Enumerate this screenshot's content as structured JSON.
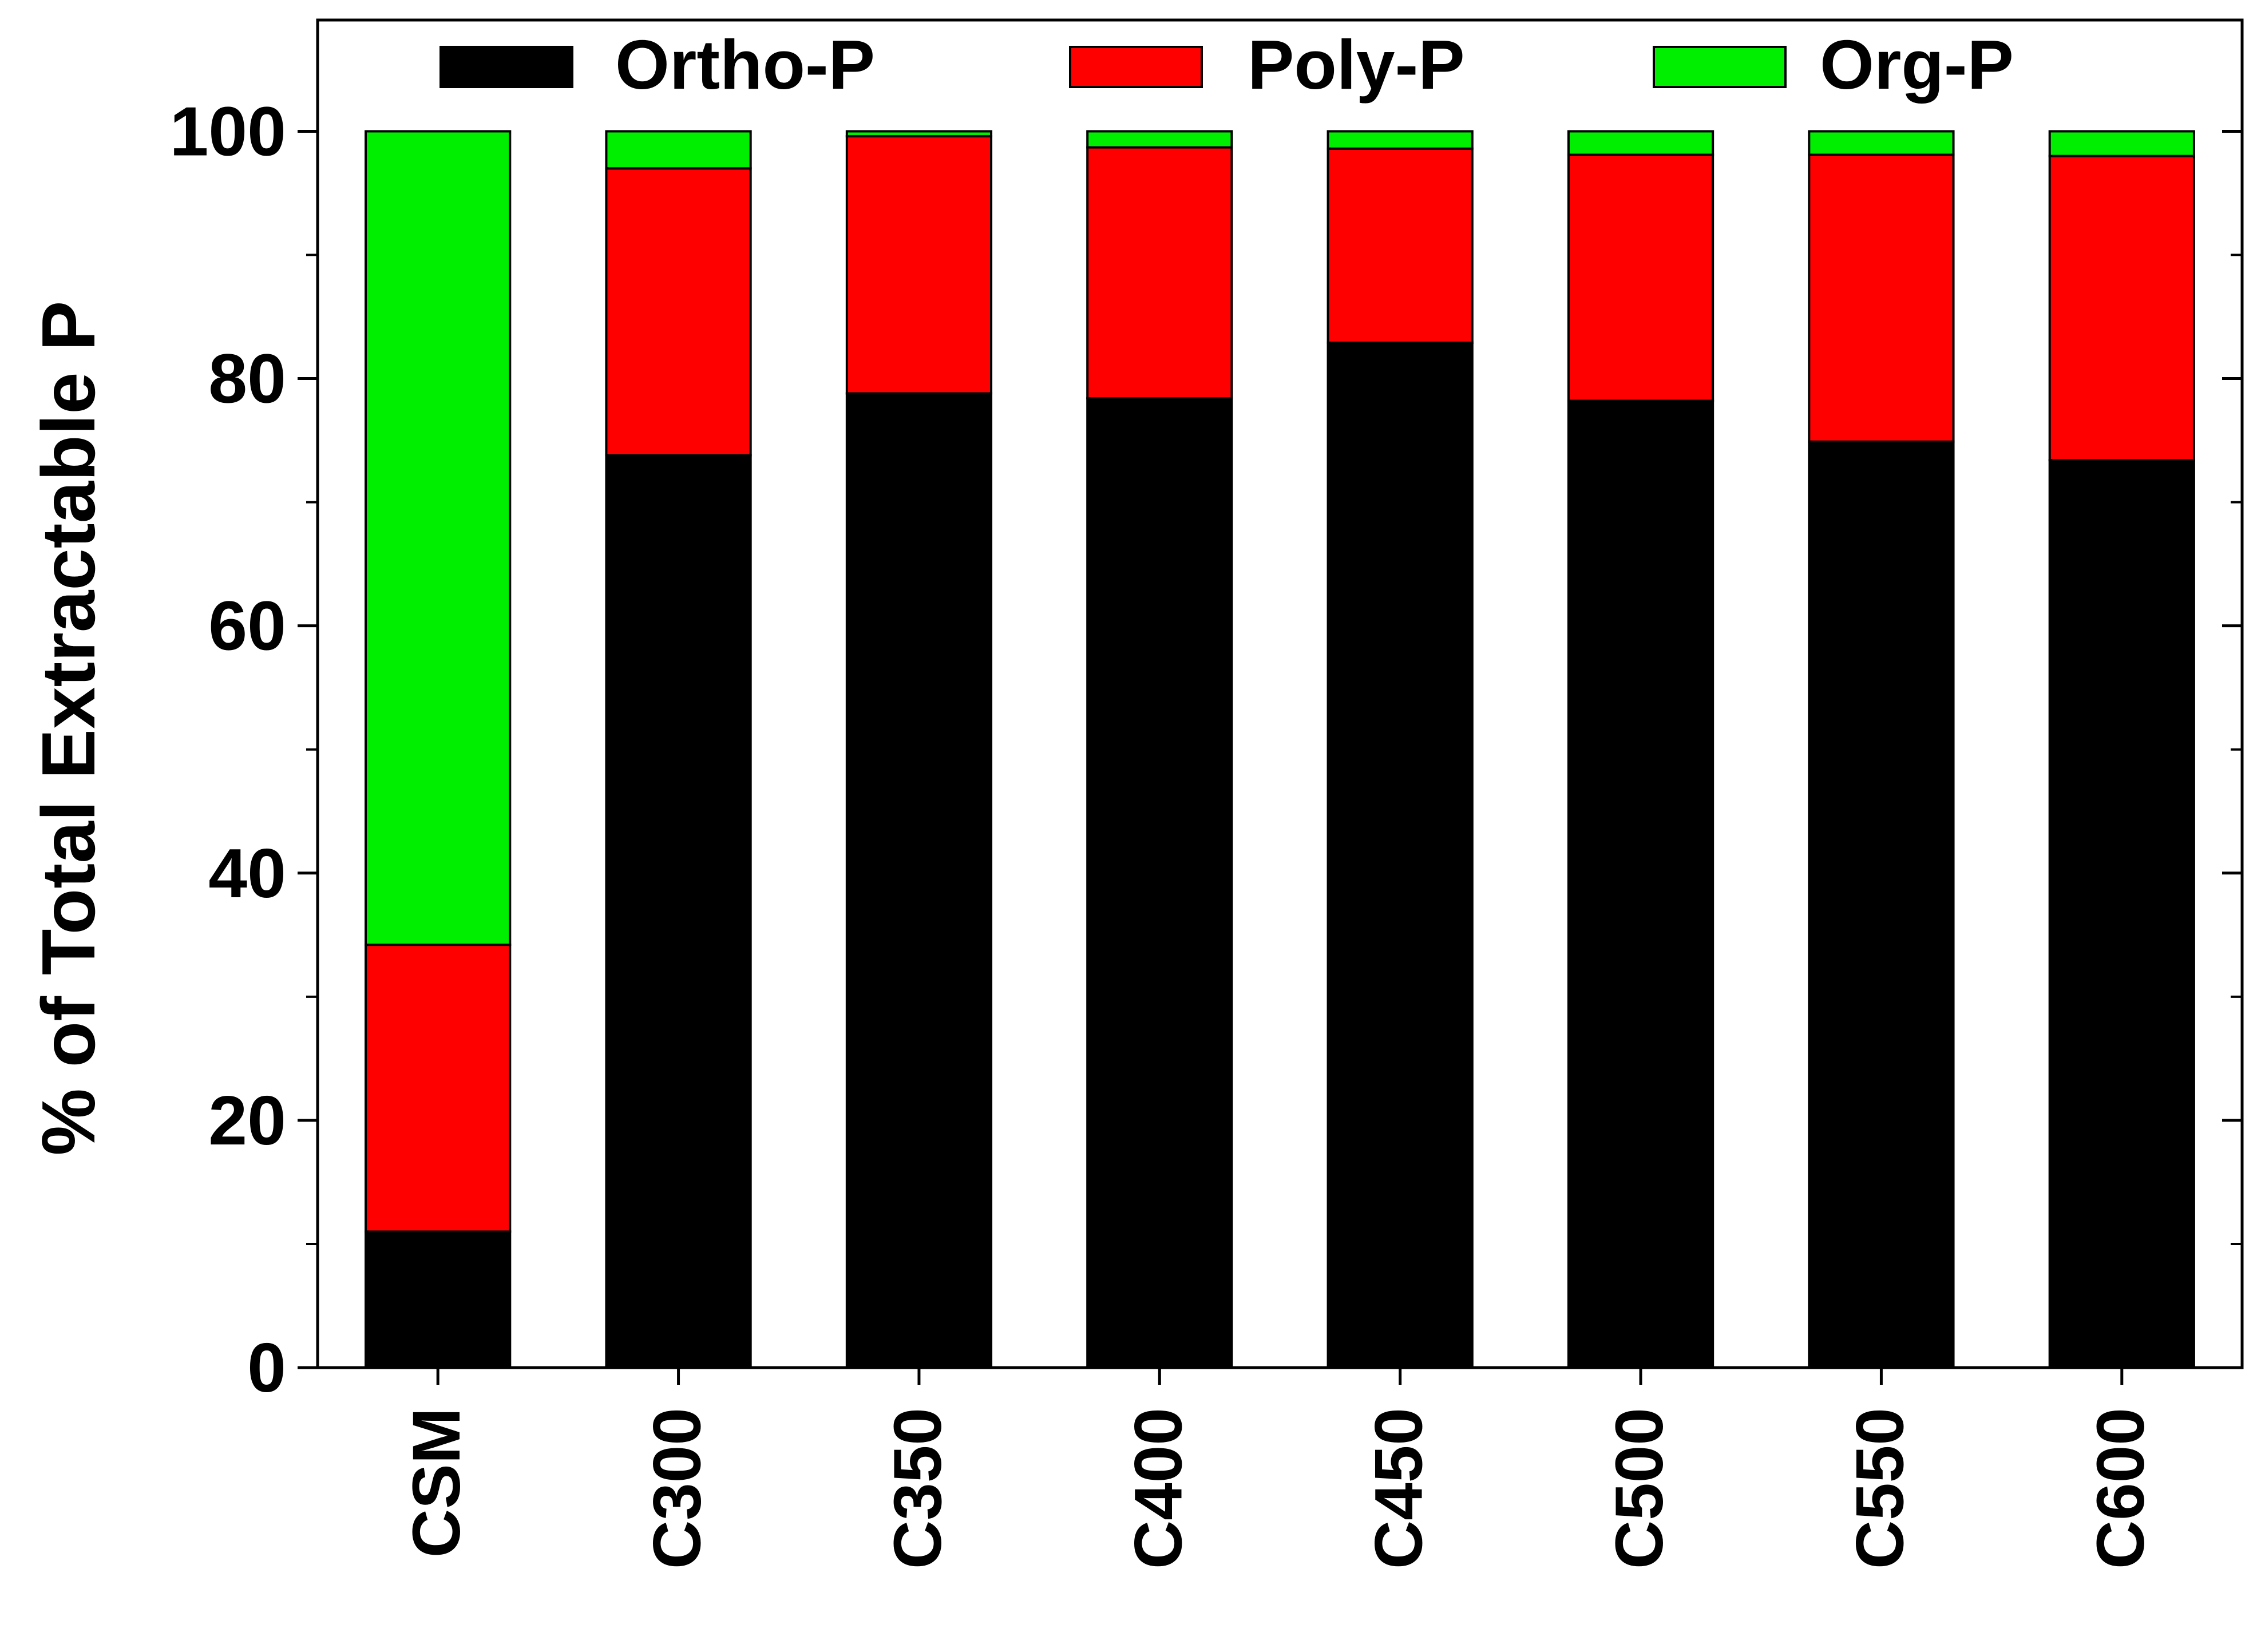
{
  "chart_data": {
    "type": "bar",
    "stacked": true,
    "title": "",
    "xlabel": "",
    "ylabel": "% of Total Extractable P",
    "ylim": [
      0,
      109
    ],
    "yticks": [
      0,
      20,
      40,
      60,
      80,
      100
    ],
    "yminor_step": 10,
    "grid": false,
    "legend_position": "top",
    "categories": [
      "CSM",
      "C300",
      "C350",
      "C400",
      "C450",
      "C500",
      "C550",
      "C600"
    ],
    "series": [
      {
        "name": "Ortho-P",
        "color": "#000000",
        "values": [
          11.0,
          73.8,
          78.8,
          78.4,
          82.9,
          78.2,
          74.9,
          73.4
        ]
      },
      {
        "name": "Poly-P",
        "color": "#ff0000",
        "values": [
          23.2,
          23.2,
          20.8,
          20.3,
          15.7,
          19.9,
          23.2,
          24.6
        ]
      },
      {
        "name": "Org-P",
        "color": "#00ee00",
        "values": [
          65.8,
          3.0,
          0.4,
          1.3,
          1.4,
          1.9,
          1.9,
          2.0
        ]
      }
    ]
  }
}
